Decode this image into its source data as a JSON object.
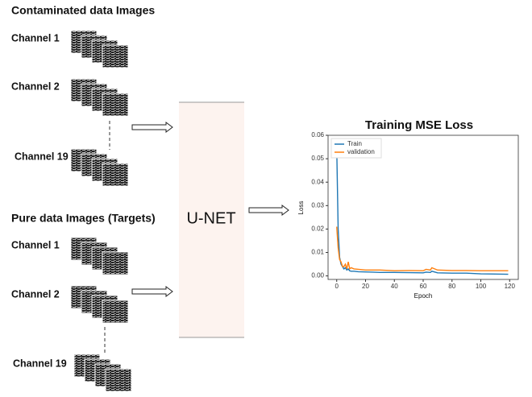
{
  "contaminated": {
    "title": "Contaminated data Images",
    "channels": [
      "Channel 1",
      "Channel 2",
      "Channel 19"
    ]
  },
  "pure": {
    "title": "Pure data Images (Targets)",
    "channels": [
      "Channel 1",
      "Channel 2",
      "Channel 19"
    ]
  },
  "model": "U-NET",
  "chart_data": {
    "type": "line",
    "title": "Training MSE Loss",
    "xlabel": "Epoch",
    "ylabel": "Loss",
    "x": [
      0,
      1,
      2,
      3,
      4,
      5,
      6,
      7,
      8,
      9,
      10,
      12,
      15,
      20,
      25,
      30,
      40,
      50,
      60,
      62,
      65,
      66,
      70,
      80,
      90,
      100,
      110,
      119
    ],
    "series": [
      {
        "name": "Train",
        "color": "#1f77b4",
        "values": [
          0.055,
          0.02,
          0.008,
          0.005,
          0.004,
          0.003,
          0.0035,
          0.0025,
          0.003,
          0.0022,
          0.002,
          0.002,
          0.0018,
          0.0017,
          0.0016,
          0.0015,
          0.0015,
          0.0014,
          0.0013,
          0.0016,
          0.0015,
          0.002,
          0.0013,
          0.0012,
          0.0012,
          0.0009,
          0.0008,
          0.0007
        ]
      },
      {
        "name": "validation",
        "color": "#ff7f0e",
        "values": [
          0.021,
          0.012,
          0.007,
          0.006,
          0.004,
          0.004,
          0.005,
          0.003,
          0.006,
          0.003,
          0.0035,
          0.003,
          0.0028,
          0.0025,
          0.0025,
          0.0025,
          0.0022,
          0.0023,
          0.0022,
          0.0028,
          0.0025,
          0.0035,
          0.0025,
          0.0023,
          0.0023,
          0.0022,
          0.0022,
          0.0022
        ]
      }
    ],
    "xlim": [
      -6,
      126
    ],
    "xticks": [
      0,
      20,
      40,
      60,
      80,
      100,
      120
    ],
    "ylim": [
      -0.0015,
      0.06
    ],
    "yticks": [
      {
        "value": 0,
        "label": "0.00"
      },
      {
        "value": 0.01,
        "label": "0.01"
      },
      {
        "value": 0.02,
        "label": "0.02"
      },
      {
        "value": 0.03,
        "label": "0.03"
      },
      {
        "value": 0.04,
        "label": "0.04"
      },
      {
        "value": 0.05,
        "label": "0.05"
      },
      {
        "value": 0.06,
        "label": "0.06"
      }
    ],
    "legend": "upper left"
  }
}
